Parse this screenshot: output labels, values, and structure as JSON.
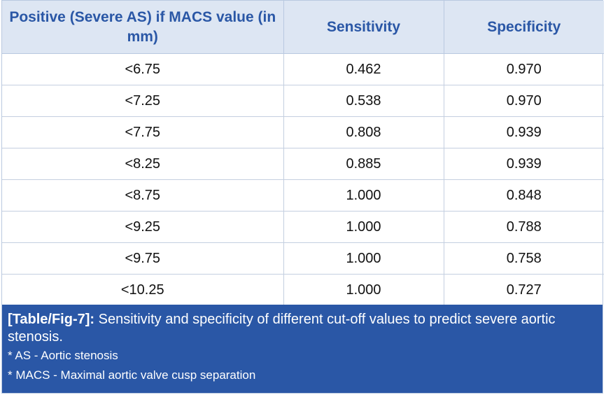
{
  "table": {
    "headers": [
      "Positive (Severe AS) if MACS value (in mm)",
      "Sensitivity",
      "Specificity"
    ],
    "rows": [
      [
        "<6.75",
        "0.462",
        "0.970"
      ],
      [
        "<7.25",
        "0.538",
        "0.970"
      ],
      [
        "<7.75",
        "0.808",
        "0.939"
      ],
      [
        "<8.25",
        "0.885",
        "0.939"
      ],
      [
        "<8.75",
        "1.000",
        "0.848"
      ],
      [
        "<9.25",
        "1.000",
        "0.788"
      ],
      [
        "<9.75",
        "1.000",
        "0.758"
      ],
      [
        "<10.25",
        "1.000",
        "0.727"
      ]
    ]
  },
  "caption": {
    "label": "[Table/Fig-7]:",
    "text": " Sensitivity and specificity of different cut-off values to predict severe aortic stenosis.",
    "notes": [
      "* AS - Aortic stenosis",
      "* MACS - Maximal aortic valve cusp separation"
    ]
  },
  "colors": {
    "header_bg": "#dde6f3",
    "header_text": "#2a57a6",
    "caption_bg": "#2a57a6",
    "border": "#b9c9e0"
  }
}
